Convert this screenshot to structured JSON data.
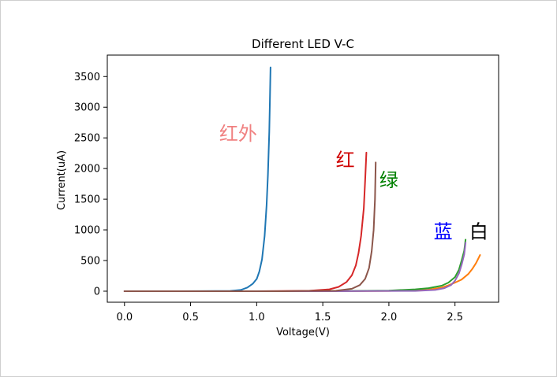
{
  "chart_data": {
    "type": "line",
    "title": "Different LED V-C",
    "xlabel": "Voltage(V)",
    "ylabel": "Current(uA)",
    "xlim": [
      -0.13,
      2.83
    ],
    "ylim": [
      -180,
      3850
    ],
    "xticks": [
      0.0,
      0.5,
      1.0,
      1.5,
      2.0,
      2.5
    ],
    "xtick_labels": [
      "0.0",
      "0.5",
      "1.0",
      "1.5",
      "2.0",
      "2.5"
    ],
    "yticks": [
      0,
      500,
      1000,
      1500,
      2000,
      2500,
      3000,
      3500
    ],
    "ytick_labels": [
      "0",
      "500",
      "1000",
      "1500",
      "2000",
      "2500",
      "3000",
      "3500"
    ],
    "grid": false,
    "series": [
      {
        "name": "红外",
        "color": "#1f77b4",
        "points": [
          [
            0.0,
            0
          ],
          [
            0.4,
            0
          ],
          [
            0.8,
            5
          ],
          [
            0.88,
            20
          ],
          [
            0.93,
            60
          ],
          [
            0.97,
            120
          ],
          [
            1.0,
            200
          ],
          [
            1.02,
            320
          ],
          [
            1.04,
            520
          ],
          [
            1.06,
            900
          ],
          [
            1.075,
            1400
          ],
          [
            1.085,
            1900
          ],
          [
            1.095,
            2600
          ],
          [
            1.1,
            3100
          ],
          [
            1.105,
            3650
          ]
        ]
      },
      {
        "name": "白",
        "color": "#ff7f0e",
        "points": [
          [
            0.0,
            0
          ],
          [
            1.5,
            0
          ],
          [
            2.0,
            5
          ],
          [
            2.3,
            25
          ],
          [
            2.4,
            60
          ],
          [
            2.45,
            95
          ],
          [
            2.5,
            140
          ],
          [
            2.55,
            190
          ],
          [
            2.6,
            280
          ],
          [
            2.63,
            360
          ],
          [
            2.66,
            460
          ],
          [
            2.69,
            590
          ]
        ]
      },
      {
        "name": "绿",
        "color": "#2ca02c",
        "points": [
          [
            0.0,
            0
          ],
          [
            1.5,
            0
          ],
          [
            2.0,
            10
          ],
          [
            2.2,
            30
          ],
          [
            2.3,
            50
          ],
          [
            2.4,
            90
          ],
          [
            2.45,
            140
          ],
          [
            2.5,
            230
          ],
          [
            2.53,
            350
          ],
          [
            2.55,
            500
          ],
          [
            2.57,
            660
          ],
          [
            2.58,
            840
          ]
        ]
      },
      {
        "name": "红",
        "color": "#d62728",
        "points": [
          [
            0.0,
            0
          ],
          [
            1.0,
            0
          ],
          [
            1.4,
            8
          ],
          [
            1.55,
            30
          ],
          [
            1.62,
            70
          ],
          [
            1.68,
            150
          ],
          [
            1.72,
            260
          ],
          [
            1.75,
            420
          ],
          [
            1.77,
            620
          ],
          [
            1.79,
            900
          ],
          [
            1.81,
            1350
          ],
          [
            1.82,
            1800
          ],
          [
            1.83,
            2260
          ]
        ]
      },
      {
        "name": "蓝",
        "color": "#9467bd",
        "points": [
          [
            0.0,
            0
          ],
          [
            1.5,
            0
          ],
          [
            2.2,
            5
          ],
          [
            2.35,
            20
          ],
          [
            2.42,
            50
          ],
          [
            2.47,
            100
          ],
          [
            2.5,
            170
          ],
          [
            2.53,
            290
          ],
          [
            2.55,
            430
          ],
          [
            2.57,
            600
          ],
          [
            2.58,
            790
          ]
        ]
      },
      {
        "name": "brown",
        "color": "#8c564b",
        "points": [
          [
            0.0,
            0
          ],
          [
            1.2,
            0
          ],
          [
            1.6,
            8
          ],
          [
            1.72,
            40
          ],
          [
            1.78,
            100
          ],
          [
            1.82,
            200
          ],
          [
            1.85,
            380
          ],
          [
            1.87,
            650
          ],
          [
            1.885,
            1000
          ],
          [
            1.895,
            1500
          ],
          [
            1.9,
            2100
          ]
        ]
      }
    ],
    "annotations": [
      {
        "text": "红外",
        "x": 0.86,
        "y": 2580,
        "color": "#f08080"
      },
      {
        "text": "红",
        "x": 1.67,
        "y": 2150,
        "color": "#d00000"
      },
      {
        "text": "绿",
        "x": 2.0,
        "y": 1820,
        "color": "#008000"
      },
      {
        "text": "蓝",
        "x": 2.41,
        "y": 980,
        "color": "#0000ff"
      },
      {
        "text": "白",
        "x": 2.68,
        "y": 980,
        "color": "#000000"
      }
    ]
  }
}
